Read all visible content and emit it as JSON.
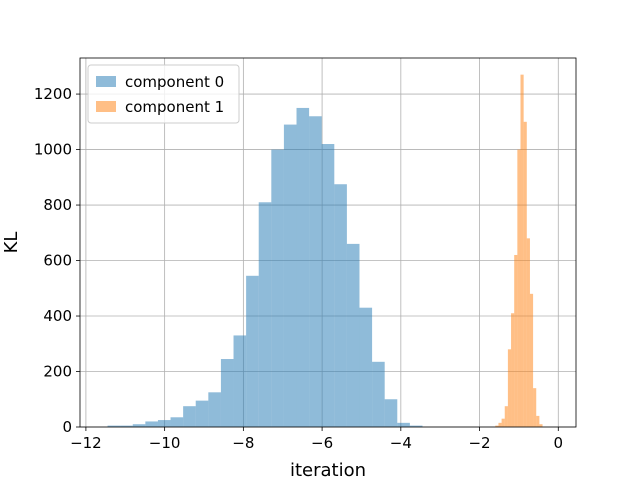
{
  "chart_data": {
    "type": "histogram",
    "xlabel": "iteration",
    "ylabel": "KL",
    "xlim": [
      -12.15,
      0.45
    ],
    "ylim": [
      0,
      1330
    ],
    "xticks": [
      -12,
      -10,
      -8,
      -6,
      -4,
      -2,
      0
    ],
    "xtick_labels": [
      "−12",
      "−10",
      "−8",
      "−6",
      "−4",
      "−2",
      "0"
    ],
    "yticks": [
      0,
      200,
      400,
      600,
      800,
      1000,
      1200
    ],
    "ytick_labels": [
      "0",
      "200",
      "400",
      "600",
      "800",
      "1000",
      "1200"
    ],
    "grid": true,
    "legend_position": "top-left",
    "series": [
      {
        "name": "component 0",
        "color": "#1f77b4",
        "opacity": 0.5,
        "bins": [
          {
            "x0": -11.45,
            "x1": -11.13,
            "count": 5
          },
          {
            "x0": -11.13,
            "x1": -10.81,
            "count": 5
          },
          {
            "x0": -10.81,
            "x1": -10.49,
            "count": 10
          },
          {
            "x0": -10.49,
            "x1": -10.17,
            "count": 20
          },
          {
            "x0": -10.17,
            "x1": -9.85,
            "count": 25
          },
          {
            "x0": -9.85,
            "x1": -9.53,
            "count": 35
          },
          {
            "x0": -9.53,
            "x1": -9.21,
            "count": 75
          },
          {
            "x0": -9.21,
            "x1": -8.89,
            "count": 95
          },
          {
            "x0": -8.89,
            "x1": -8.57,
            "count": 125
          },
          {
            "x0": -8.57,
            "x1": -8.25,
            "count": 245
          },
          {
            "x0": -8.25,
            "x1": -7.93,
            "count": 330
          },
          {
            "x0": -7.93,
            "x1": -7.61,
            "count": 545
          },
          {
            "x0": -7.61,
            "x1": -7.29,
            "count": 810
          },
          {
            "x0": -7.29,
            "x1": -6.97,
            "count": 1000
          },
          {
            "x0": -6.97,
            "x1": -6.65,
            "count": 1090
          },
          {
            "x0": -6.65,
            "x1": -6.33,
            "count": 1150
          },
          {
            "x0": -6.33,
            "x1": -6.01,
            "count": 1120
          },
          {
            "x0": -6.01,
            "x1": -5.69,
            "count": 1020
          },
          {
            "x0": -5.69,
            "x1": -5.37,
            "count": 875
          },
          {
            "x0": -5.37,
            "x1": -5.05,
            "count": 660
          },
          {
            "x0": -5.05,
            "x1": -4.73,
            "count": 430
          },
          {
            "x0": -4.73,
            "x1": -4.41,
            "count": 235
          },
          {
            "x0": -4.41,
            "x1": -4.09,
            "count": 100
          },
          {
            "x0": -4.09,
            "x1": -3.77,
            "count": 15
          },
          {
            "x0": -3.77,
            "x1": -3.45,
            "count": 5
          }
        ]
      },
      {
        "name": "component 1",
        "color": "#ff7f0e",
        "opacity": 0.5,
        "bins": [
          {
            "x0": -1.6,
            "x1": -1.52,
            "count": 5
          },
          {
            "x0": -1.52,
            "x1": -1.44,
            "count": 15
          },
          {
            "x0": -1.44,
            "x1": -1.36,
            "count": 30
          },
          {
            "x0": -1.36,
            "x1": -1.28,
            "count": 75
          },
          {
            "x0": -1.28,
            "x1": -1.2,
            "count": 280
          },
          {
            "x0": -1.2,
            "x1": -1.12,
            "count": 410
          },
          {
            "x0": -1.12,
            "x1": -1.04,
            "count": 620
          },
          {
            "x0": -1.04,
            "x1": -0.96,
            "count": 1000
          },
          {
            "x0": -0.96,
            "x1": -0.88,
            "count": 1270
          },
          {
            "x0": -0.88,
            "x1": -0.8,
            "count": 1100
          },
          {
            "x0": -0.8,
            "x1": -0.72,
            "count": 680
          },
          {
            "x0": -0.72,
            "x1": -0.64,
            "count": 480
          },
          {
            "x0": -0.64,
            "x1": -0.56,
            "count": 140
          },
          {
            "x0": -0.56,
            "x1": -0.48,
            "count": 40
          },
          {
            "x0": -0.48,
            "x1": -0.4,
            "count": 10
          }
        ]
      }
    ]
  }
}
